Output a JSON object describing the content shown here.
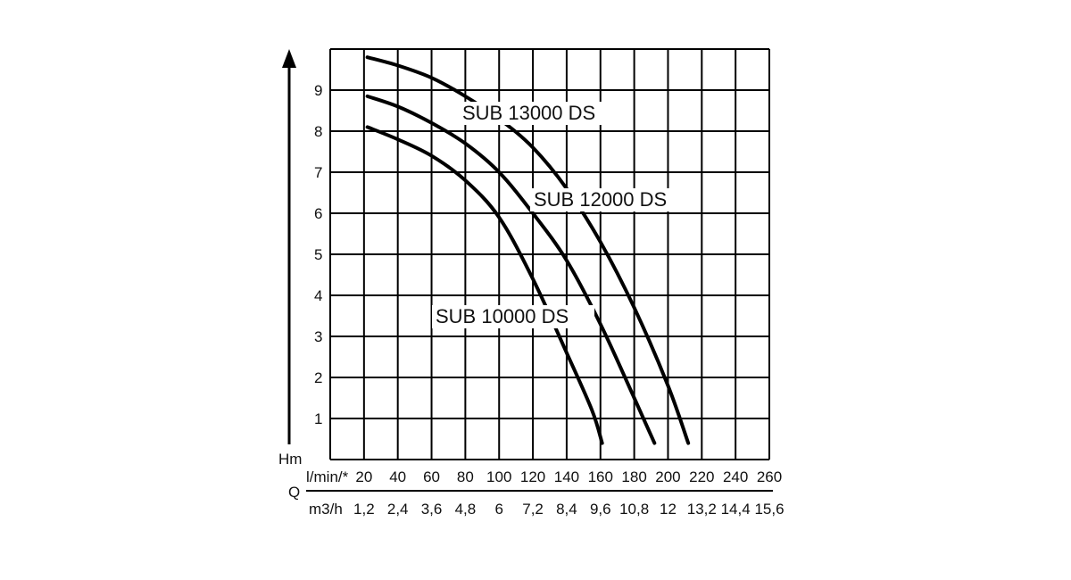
{
  "chart_data": {
    "type": "line",
    "title": "",
    "ylabel": "Hm",
    "xlabel": "Q",
    "x_unit_primary": "l/min/*",
    "x_unit_secondary": "m3/h",
    "xlim": [
      20,
      260
    ],
    "ylim": [
      0,
      10
    ],
    "yticks": [
      "1",
      "2",
      "3",
      "4",
      "5",
      "6",
      "7",
      "8",
      "9"
    ],
    "xticks_primary": [
      "20",
      "40",
      "60",
      "80",
      "100",
      "120",
      "140",
      "160",
      "180",
      "200",
      "220",
      "240",
      "260"
    ],
    "xticks_secondary": [
      "1,2",
      "2,4",
      "3,6",
      "4,8",
      "6",
      "7,2",
      "8,4",
      "9,6",
      "10,8",
      "12",
      "13,2",
      "14,4",
      "15,6"
    ],
    "grid": true,
    "series": [
      {
        "name": "SUB 13000 DS",
        "x": [
          22,
          40,
          60,
          80,
          100,
          120,
          140,
          160,
          180,
          200,
          212
        ],
        "y": [
          9.8,
          9.6,
          9.3,
          8.85,
          8.3,
          7.6,
          6.6,
          5.3,
          3.7,
          1.8,
          0.4
        ]
      },
      {
        "name": "SUB 12000 DS",
        "x": [
          22,
          40,
          60,
          80,
          100,
          120,
          140,
          160,
          180,
          192
        ],
        "y": [
          8.85,
          8.6,
          8.2,
          7.7,
          7.0,
          6.0,
          4.85,
          3.3,
          1.5,
          0.4
        ]
      },
      {
        "name": "SUB 10000 DS",
        "x": [
          22,
          40,
          60,
          80,
          100,
          120,
          140,
          155,
          161
        ],
        "y": [
          8.1,
          7.8,
          7.4,
          6.8,
          5.9,
          4.4,
          2.6,
          1.2,
          0.4
        ]
      }
    ]
  }
}
